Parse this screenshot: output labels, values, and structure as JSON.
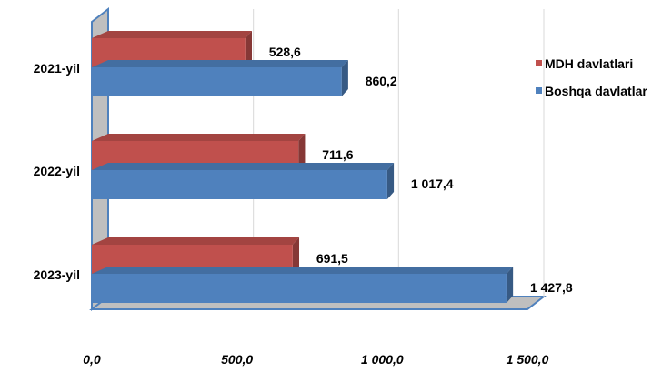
{
  "chart_data": {
    "type": "bar",
    "orientation": "horizontal",
    "style": "3d-clustered",
    "categories": [
      "2021-yil",
      "2022-yil",
      "2023-yil"
    ],
    "series": [
      {
        "name": "MDH davlatlari",
        "values": [
          528.6,
          711.6,
          691.5
        ],
        "value_labels": [
          "528,6",
          "711,6",
          "691,5"
        ],
        "color": "#C0504D"
      },
      {
        "name": "Boshqa davlatlar",
        "values": [
          860.2,
          1017.4,
          1427.8
        ],
        "value_labels": [
          "860,2",
          "1 017,4",
          "1 427,8"
        ],
        "color": "#4F81BD"
      }
    ],
    "xlim": [
      0,
      1500
    ],
    "x_ticks": [
      0,
      500,
      1000,
      1500
    ],
    "x_tick_labels": [
      "0,0",
      "500,0",
      "1 000,0",
      "1 500,0"
    ],
    "grid": true,
    "legend": "right"
  }
}
